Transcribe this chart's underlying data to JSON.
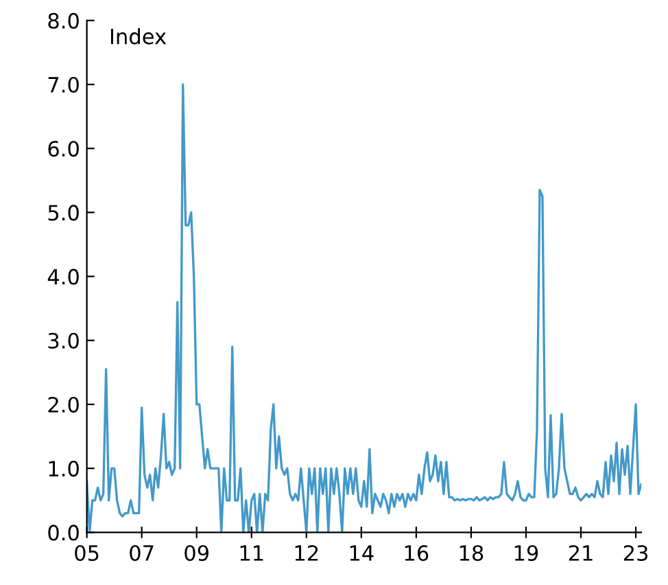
{
  "chart_data": {
    "type": "line",
    "ylabel": "Index",
    "categories": [
      "05",
      null,
      null,
      null,
      null,
      null,
      null,
      null,
      null,
      null,
      null,
      null,
      null,
      null,
      null,
      null,
      null,
      null,
      null,
      null,
      "07",
      null,
      null,
      null,
      null,
      null,
      null,
      null,
      null,
      null,
      null,
      null,
      null,
      null,
      null,
      null,
      null,
      null,
      null,
      null,
      "09",
      null,
      null,
      null,
      null,
      null,
      null,
      null,
      null,
      null,
      null,
      null,
      null,
      null,
      null,
      null,
      null,
      null,
      null,
      null,
      "11",
      null,
      null,
      null,
      null,
      null,
      null,
      null,
      null,
      null,
      null,
      null,
      null,
      null,
      null,
      null,
      null,
      null,
      null,
      null,
      "12",
      null,
      null,
      null,
      null,
      null,
      null,
      null,
      null,
      null,
      null,
      null,
      null,
      null,
      null,
      null,
      null,
      null,
      null,
      null,
      "14",
      null,
      null,
      null,
      null,
      null,
      null,
      null,
      null,
      null,
      null,
      null,
      null,
      null,
      null,
      null,
      null,
      null,
      null,
      null,
      "16",
      null,
      null,
      null,
      null,
      null,
      null,
      null,
      null,
      null,
      null,
      null,
      null,
      null,
      null,
      null,
      null,
      null,
      null,
      null,
      "18",
      null,
      null,
      null,
      null,
      null,
      null,
      null,
      null,
      null,
      null,
      null,
      null,
      null,
      null,
      null,
      null,
      null,
      null,
      null,
      "19",
      null,
      null,
      null,
      null,
      null,
      null,
      null,
      null,
      null,
      null,
      null,
      null,
      null,
      null,
      null,
      null,
      null,
      null,
      null,
      "21",
      null,
      null,
      null,
      null,
      null,
      null,
      null,
      null,
      null,
      null,
      null,
      null,
      null,
      null,
      null,
      null,
      null,
      null,
      null,
      "23",
      null,
      null
    ],
    "series": [
      {
        "color": "#4399c9",
        "values": [
          0.8,
          0.0,
          0.5,
          0.5,
          0.7,
          0.5,
          0.6,
          2.55,
          0.5,
          1.0,
          1.0,
          0.5,
          0.3,
          0.25,
          0.3,
          0.3,
          0.5,
          0.3,
          0.3,
          0.3,
          1.95,
          0.9,
          0.7,
          0.9,
          0.5,
          1.0,
          0.7,
          1.2,
          1.85,
          1.0,
          1.1,
          0.9,
          1.0,
          3.6,
          1.0,
          7.0,
          4.8,
          4.8,
          5.0,
          4.0,
          2.0,
          2.0,
          1.5,
          1.0,
          1.3,
          1.0,
          1.0,
          1.0,
          1.0,
          0.0,
          1.0,
          0.5,
          0.5,
          2.9,
          0.5,
          0.5,
          1.0,
          0.0,
          0.5,
          0.0,
          0.5,
          0.6,
          0.0,
          0.6,
          0.0,
          0.6,
          0.5,
          1.6,
          2.0,
          1.0,
          1.5,
          1.0,
          0.9,
          1.0,
          0.6,
          0.5,
          0.6,
          0.5,
          1.0,
          0.5,
          0.0,
          1.0,
          0.6,
          1.0,
          0.0,
          1.0,
          0.6,
          1.0,
          0.0,
          1.0,
          0.6,
          1.0,
          0.6,
          0.0,
          1.0,
          0.6,
          1.0,
          0.6,
          1.0,
          0.5,
          0.4,
          0.8,
          0.4,
          1.3,
          0.3,
          0.6,
          0.5,
          0.4,
          0.6,
          0.5,
          0.3,
          0.6,
          0.4,
          0.6,
          0.5,
          0.6,
          0.4,
          0.6,
          0.5,
          0.6,
          0.5,
          0.9,
          0.6,
          1.0,
          1.25,
          0.8,
          0.9,
          1.2,
          0.8,
          1.1,
          0.6,
          1.1,
          0.55,
          0.55,
          0.5,
          0.52,
          0.5,
          0.52,
          0.5,
          0.52,
          0.52,
          0.5,
          0.55,
          0.5,
          0.52,
          0.55,
          0.5,
          0.55,
          0.52,
          0.55,
          0.55,
          0.6,
          1.1,
          0.6,
          0.55,
          0.5,
          0.6,
          0.8,
          0.55,
          0.5,
          0.5,
          0.6,
          0.55,
          0.55,
          1.6,
          5.35,
          5.25,
          1.0,
          0.55,
          1.83,
          0.55,
          0.6,
          1.0,
          1.85,
          1.0,
          0.8,
          0.6,
          0.6,
          0.7,
          0.55,
          0.5,
          0.55,
          0.6,
          0.55,
          0.6,
          0.55,
          0.8,
          0.6,
          0.55,
          1.1,
          0.6,
          1.2,
          0.8,
          1.4,
          0.6,
          1.3,
          0.9,
          1.35,
          0.6,
          1.3,
          2.0,
          0.6,
          0.75
        ]
      }
    ],
    "ylim": [
      0,
      8
    ],
    "yticks": [
      {
        "value": 0,
        "label": "0.0"
      },
      {
        "value": 1,
        "label": "1.0"
      },
      {
        "value": 2,
        "label": "2.0"
      },
      {
        "value": 3,
        "label": "3.0"
      },
      {
        "value": 4,
        "label": "4.0"
      },
      {
        "value": 5,
        "label": "5.0"
      },
      {
        "value": 6,
        "label": "6.0"
      },
      {
        "value": 7,
        "label": "7.0"
      },
      {
        "value": 8,
        "label": "8.0"
      }
    ]
  }
}
